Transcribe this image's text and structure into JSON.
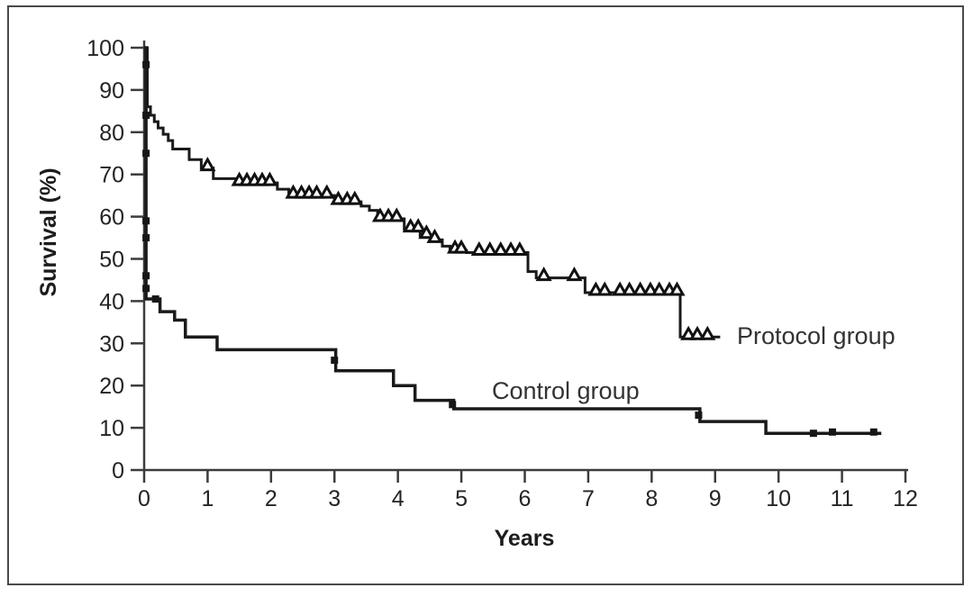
{
  "figure": {
    "background": "#ffffff",
    "border_color": "#4a4a4a",
    "line_color": "#1a1a1a",
    "axis_color": "#3c3c3c"
  },
  "chart_data": {
    "type": "line",
    "subtype": "kaplan-meier-step-curve",
    "title": "",
    "xlabel": "Years",
    "ylabel": "Survival (%)",
    "xlim": [
      0,
      12
    ],
    "ylim": [
      0,
      100
    ],
    "xticks": [
      0,
      1,
      2,
      3,
      4,
      5,
      6,
      7,
      8,
      9,
      10,
      11,
      12
    ],
    "yticks": [
      0,
      10,
      20,
      30,
      40,
      50,
      60,
      70,
      80,
      90,
      100
    ],
    "grid": false,
    "legend_position": "inline-annotations",
    "series": [
      {
        "name": "Protocol group",
        "marker": "triangle",
        "line_width": 3,
        "points": [
          [
            0,
            100
          ],
          [
            0.05,
            86
          ],
          [
            0.1,
            84
          ],
          [
            0.16,
            82.5
          ],
          [
            0.22,
            81
          ],
          [
            0.3,
            79.5
          ],
          [
            0.38,
            78
          ],
          [
            0.45,
            76
          ],
          [
            0.71,
            73.5
          ],
          [
            0.9,
            71.5
          ],
          [
            1.09,
            69
          ],
          [
            1.45,
            68
          ],
          [
            2.1,
            66.5
          ],
          [
            2.28,
            65
          ],
          [
            3.0,
            63.5
          ],
          [
            3.42,
            62.5
          ],
          [
            3.55,
            61.5
          ],
          [
            3.68,
            59.5
          ],
          [
            4.1,
            57
          ],
          [
            4.35,
            55.5
          ],
          [
            4.55,
            54.5
          ],
          [
            4.7,
            53
          ],
          [
            4.82,
            52
          ],
          [
            5.08,
            51.5
          ],
          [
            6.05,
            47
          ],
          [
            6.18,
            45.5
          ],
          [
            6.95,
            42
          ],
          [
            8.45,
            31.5
          ]
        ],
        "end_time": 9.08,
        "censor_marks": [
          [
            1.0,
            71.5
          ],
          [
            1.5,
            68
          ],
          [
            1.62,
            68
          ],
          [
            1.74,
            68
          ],
          [
            1.86,
            68
          ],
          [
            1.98,
            68
          ],
          [
            2.35,
            65
          ],
          [
            2.48,
            65
          ],
          [
            2.6,
            65
          ],
          [
            2.72,
            65
          ],
          [
            2.88,
            65
          ],
          [
            3.06,
            63.5
          ],
          [
            3.2,
            63.5
          ],
          [
            3.32,
            63.5
          ],
          [
            3.72,
            59.5
          ],
          [
            3.85,
            59.5
          ],
          [
            3.98,
            59.5
          ],
          [
            4.2,
            57
          ],
          [
            4.32,
            57
          ],
          [
            4.45,
            55.5
          ],
          [
            4.58,
            54.5
          ],
          [
            4.9,
            52
          ],
          [
            5.0,
            52
          ],
          [
            5.28,
            51.5
          ],
          [
            5.45,
            51.5
          ],
          [
            5.62,
            51.5
          ],
          [
            5.78,
            51.5
          ],
          [
            5.92,
            51.5
          ],
          [
            6.3,
            45.5
          ],
          [
            6.78,
            45.5
          ],
          [
            7.12,
            42
          ],
          [
            7.26,
            42
          ],
          [
            7.5,
            42
          ],
          [
            7.65,
            42
          ],
          [
            7.82,
            42
          ],
          [
            7.98,
            42
          ],
          [
            8.12,
            42
          ],
          [
            8.28,
            42
          ],
          [
            8.4,
            42
          ],
          [
            8.58,
            31.5
          ],
          [
            8.72,
            31.5
          ],
          [
            8.88,
            31.5
          ]
        ]
      },
      {
        "name": "Control group",
        "marker": "square",
        "line_width": 3.5,
        "points": [
          [
            0,
            100
          ],
          [
            0.03,
            40.5
          ],
          [
            0.25,
            37.5
          ],
          [
            0.48,
            35.5
          ],
          [
            0.65,
            31.5
          ],
          [
            1.15,
            28.5
          ],
          [
            3.02,
            23.5
          ],
          [
            3.93,
            20
          ],
          [
            4.27,
            16.5
          ],
          [
            4.88,
            14.5
          ],
          [
            8.76,
            11.5
          ],
          [
            9.8,
            8.7
          ]
        ],
        "end_time": 11.62,
        "censor_marks": [
          [
            0.03,
            96
          ],
          [
            0.03,
            84
          ],
          [
            0.03,
            75
          ],
          [
            0.03,
            59
          ],
          [
            0.03,
            55
          ],
          [
            0.03,
            46
          ],
          [
            0.03,
            43
          ],
          [
            0.18,
            40.5
          ],
          [
            3.0,
            26
          ],
          [
            4.86,
            15.5
          ],
          [
            8.74,
            13
          ],
          [
            10.55,
            8.7
          ],
          [
            10.85,
            9
          ],
          [
            11.5,
            9
          ]
        ]
      }
    ],
    "annotations": [
      {
        "text": "Protocol group",
        "x": 9.35,
        "y": 31,
        "anchor": "start"
      },
      {
        "text": "Control group",
        "x": 5.49,
        "y": 19,
        "anchor": "start"
      }
    ]
  }
}
